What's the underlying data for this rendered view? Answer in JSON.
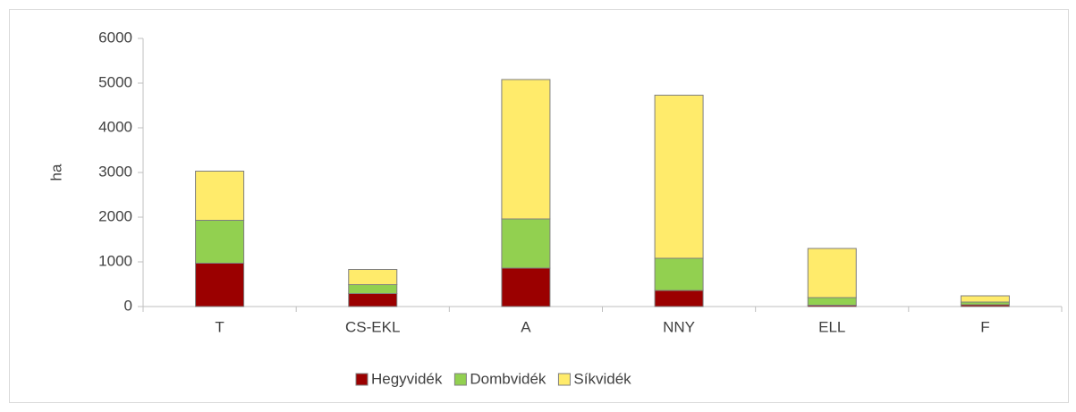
{
  "chart_data": {
    "type": "stacked_bar",
    "y_label": "ha",
    "categories": [
      "T",
      "CS-EKL",
      "A",
      "NNY",
      "ELL",
      "F"
    ],
    "series": [
      {
        "name": "Hegyvidék",
        "color": "#9b0000",
        "values": [
          970,
          290,
          860,
          360,
          30,
          40
        ]
      },
      {
        "name": "Dombvidék",
        "color": "#92d050",
        "values": [
          960,
          200,
          1100,
          720,
          170,
          60
        ]
      },
      {
        "name": "Síkvidék",
        "color": "#ffeb6b",
        "values": [
          1100,
          340,
          3120,
          3650,
          1100,
          140
        ]
      }
    ],
    "ylim": [
      0,
      6000
    ],
    "yticks": [
      0,
      1000,
      2000,
      3000,
      4000,
      5000,
      6000
    ],
    "grid": false,
    "legend": "bottom"
  }
}
